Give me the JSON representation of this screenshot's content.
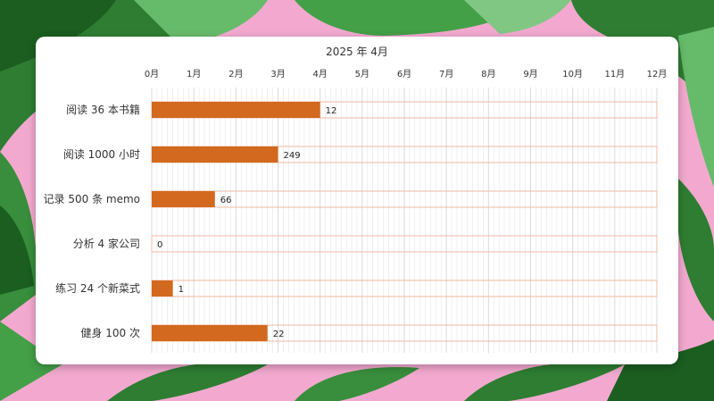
{
  "chart_data": {
    "type": "bar",
    "title": "2025 年 4月",
    "x_ticks": [
      "0月",
      "1月",
      "2月",
      "3月",
      "4月",
      "5月",
      "6月",
      "7月",
      "8月",
      "9月",
      "10月",
      "11月",
      "12月"
    ],
    "xlim": [
      0,
      12
    ],
    "categories": [
      "阅读 36 本书籍",
      "阅读 1000 小时",
      "记录 500 条 memo",
      "分析 4 家公司",
      "练习 24 个新菜式",
      "健身 100 次"
    ],
    "values": [
      4,
      3,
      1.5,
      0,
      0.5,
      2.75
    ],
    "data_labels": [
      "12",
      "249",
      "66",
      "0",
      "1",
      "22"
    ],
    "grid": true
  },
  "colors": {
    "bar": "#d2691e",
    "track_border": "#f0b9a3",
    "grid": "#e6e6e6",
    "card": "#ffffff",
    "background": "#f3a9cf",
    "leaf": "#2e7d32"
  }
}
